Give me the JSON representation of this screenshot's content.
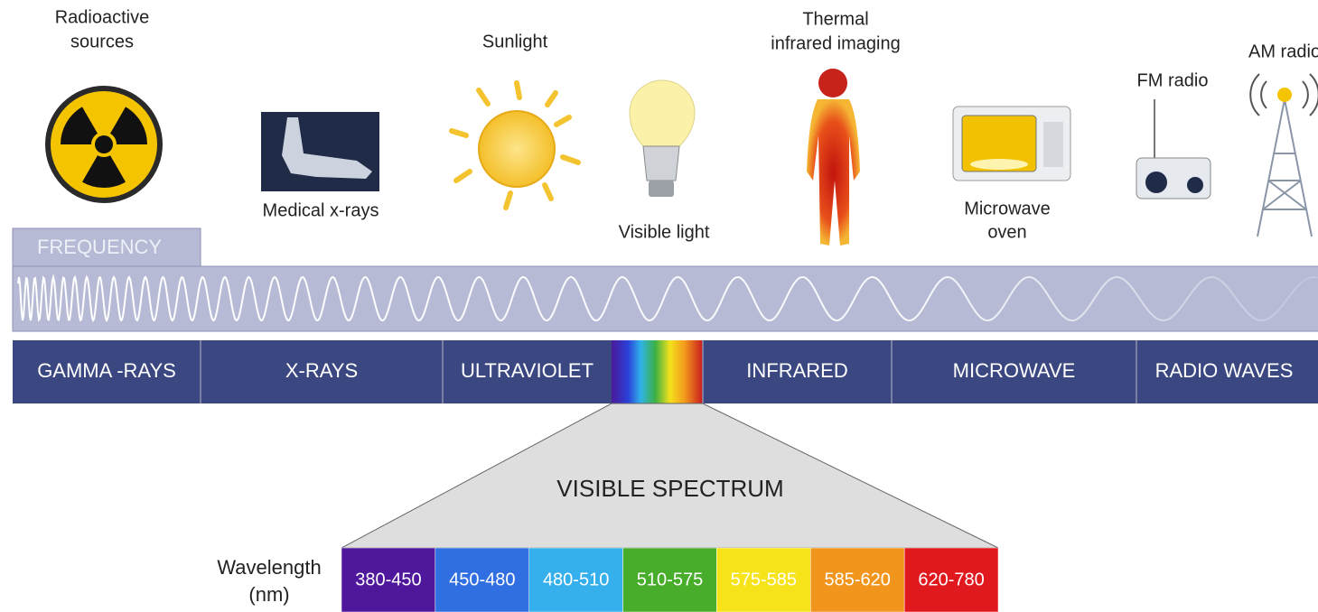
{
  "sources": [
    {
      "label": [
        "Radioactive",
        "sources"
      ]
    },
    {
      "label": [
        "Medical x-rays"
      ]
    },
    {
      "label": [
        "Sunlight"
      ]
    },
    {
      "label": [
        "Visible light"
      ]
    },
    {
      "label": [
        "Thermal",
        "infrared imaging"
      ]
    },
    {
      "label": [
        "Microwave",
        "oven"
      ]
    },
    {
      "label": [
        "FM radio"
      ]
    },
    {
      "label": [
        "AM radio"
      ]
    }
  ],
  "frequency_label": "FREQUENCY",
  "bands": [
    "GAMMA -RAYS",
    "X-RAYS",
    "ULTRAVIOLET",
    "INFRARED",
    "MICROWAVE",
    "RADIO WAVES"
  ],
  "visible_spectrum": {
    "title": "VISIBLE SPECTRUM",
    "wavelength_label": [
      "Wavelength",
      "(nm)"
    ],
    "ranges": [
      "380-450",
      "450-480",
      "480-510",
      "510-575",
      "575-585",
      "585-620",
      "620-780"
    ]
  }
}
